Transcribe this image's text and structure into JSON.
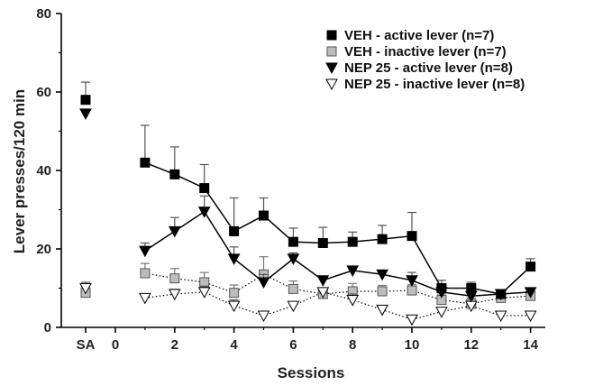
{
  "chart_data": {
    "type": "line",
    "xlabel": "Sessions",
    "ylabel": "Lever presses/120 min",
    "ylim": [
      0,
      80
    ],
    "y_ticks": [
      "0",
      "20",
      "40",
      "60",
      "80"
    ],
    "x_ticks": [
      "SA",
      "0",
      "2",
      "4",
      "6",
      "8",
      "10",
      "12",
      "14"
    ],
    "grid": false,
    "legend_position": "top-right",
    "sessions": [
      1,
      2,
      3,
      4,
      5,
      6,
      7,
      8,
      9,
      10,
      11,
      12,
      13,
      14
    ],
    "series": [
      {
        "name": "VEH - active lever (n=7)",
        "marker": "filled-square",
        "line": "solid",
        "color": "#000000",
        "sa": {
          "value": 58,
          "err": 4.5
        },
        "values": [
          42,
          39,
          35.5,
          24.5,
          28.5,
          21.8,
          21.5,
          21.8,
          22.5,
          23.3,
          10,
          10,
          8.5,
          15.5
        ],
        "errors": [
          9.5,
          7,
          6,
          8.5,
          4.5,
          3.5,
          4,
          2.5,
          3.5,
          6,
          2,
          1.5,
          1,
          2
        ]
      },
      {
        "name": "VEH - inactive lever (n=7)",
        "marker": "gray-square",
        "line": "dotted",
        "color": "#aaaaaa",
        "sa": {
          "value": 8.8,
          "err": 1.5
        },
        "values": [
          13.8,
          12.5,
          11.5,
          8.8,
          13.5,
          9.8,
          8.5,
          9.2,
          9.2,
          9.4,
          7,
          6,
          7.5,
          8
        ],
        "errors": [
          2.5,
          2.5,
          2.5,
          2,
          4.5,
          2,
          1.5,
          2,
          1.5,
          1.5,
          1.5,
          1.5,
          1.5,
          1.5
        ]
      },
      {
        "name": "NEP 25 - active lever (n=8)",
        "marker": "filled-triangle-down",
        "line": "solid",
        "color": "#000000",
        "sa": {
          "value": 54.5,
          "err": 0
        },
        "values": [
          19.5,
          24.5,
          29.5,
          17.5,
          11.5,
          17.5,
          12,
          14.5,
          13.5,
          12,
          9,
          8,
          8.5,
          9
        ],
        "errors": [
          2,
          3.5,
          4,
          3,
          2,
          1.5,
          1,
          1,
          1,
          2,
          1.5,
          1,
          1,
          1
        ]
      },
      {
        "name": "NEP 25 - inactive lever (n=8)",
        "marker": "open-triangle-down",
        "line": "dotted",
        "color": "#ffffff",
        "sa": {
          "value": 10,
          "err": 1.5
        },
        "values": [
          7.5,
          8.5,
          9,
          5.5,
          3,
          5.5,
          9,
          7,
          4.5,
          2,
          4,
          5.5,
          3,
          3
        ],
        "errors": [
          1,
          1.2,
          1.5,
          1.5,
          0.5,
          1,
          1,
          1.5,
          0.5,
          0.5,
          1,
          1,
          0.5,
          0.5
        ]
      }
    ]
  }
}
